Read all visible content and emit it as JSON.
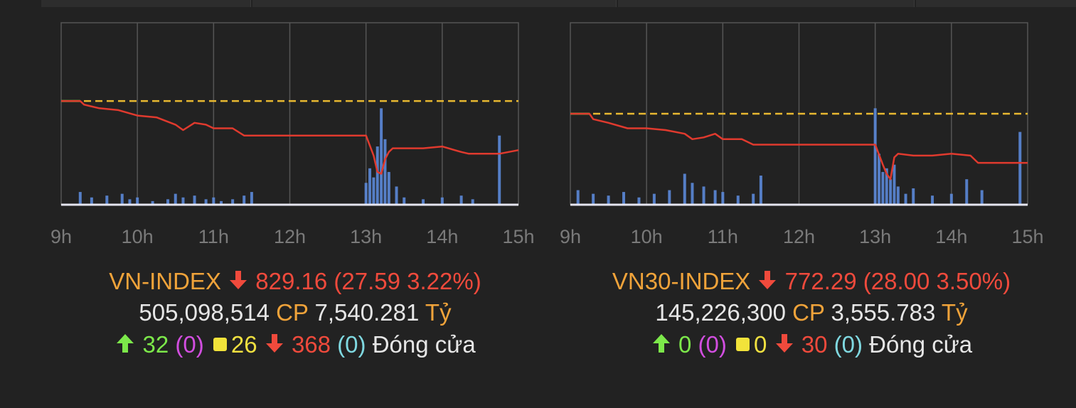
{
  "colors": {
    "background": "#222222",
    "grid": "#555555",
    "reference_line": "#e8b830",
    "index_line": "#e03a2e",
    "opening_segment": "#5cc040",
    "volume_bars": "#5b88d8",
    "name_color": "#f0a33a",
    "down_color": "#f04a3c",
    "up_color": "#7ce84a",
    "unchanged_color": "#f2e33a",
    "ceiling_color": "#d24ee0",
    "floor_color": "#7fd8e0"
  },
  "panels": [
    {
      "name": "VN-INDEX",
      "direction": "down",
      "value": "829.16",
      "change": "(27.59 3.22%)",
      "volume": "505,098,514",
      "cp_label": "CP",
      "turnover": "7,540.281",
      "unit": "Tỷ",
      "advances": "32",
      "advances_ceiling": "(0)",
      "unchanged": "26",
      "declines": "368",
      "declines_floor": "(0)",
      "status": "Đóng cửa"
    },
    {
      "name": "VN30-INDEX",
      "direction": "down",
      "value": "772.29",
      "change": "(28.00 3.50%)",
      "volume": "145,226,300",
      "cp_label": "CP",
      "turnover": "3,555.783",
      "unit": "Tỷ",
      "advances": "0",
      "advances_ceiling": "(0)",
      "unchanged": "0",
      "declines": "30",
      "declines_floor": "(0)",
      "status": "Đóng cửa"
    }
  ],
  "chart_data": [
    {
      "type": "line",
      "title": "VN-INDEX",
      "x_tick_labels": [
        "9h",
        "10h",
        "11h",
        "12h",
        "13h",
        "14h",
        "15h"
      ],
      "xlim": [
        9,
        15
      ],
      "ylim_fraction_of_range": [
        0,
        1
      ],
      "reference_level": 0.57,
      "grid": true,
      "series": [
        {
          "name": "index",
          "x": [
            9.0,
            9.25,
            9.3,
            9.5,
            9.75,
            10.0,
            10.25,
            10.5,
            10.6,
            10.75,
            10.9,
            11.0,
            11.25,
            11.4,
            11.5,
            12.0,
            12.5,
            13.0,
            13.1,
            13.15,
            13.2,
            13.25,
            13.3,
            13.35,
            13.5,
            13.75,
            14.0,
            14.25,
            14.35,
            14.5,
            14.75,
            15.0
          ],
          "y": [
            0.57,
            0.57,
            0.55,
            0.53,
            0.52,
            0.49,
            0.48,
            0.44,
            0.41,
            0.45,
            0.44,
            0.42,
            0.42,
            0.38,
            0.38,
            0.38,
            0.38,
            0.38,
            0.27,
            0.18,
            0.17,
            0.25,
            0.29,
            0.31,
            0.31,
            0.31,
            0.32,
            0.29,
            0.28,
            0.28,
            0.28,
            0.3
          ]
        },
        {
          "name": "volume",
          "x": [
            9.25,
            9.4,
            9.6,
            9.8,
            9.9,
            10.0,
            10.2,
            10.4,
            10.5,
            10.6,
            10.75,
            10.9,
            11.0,
            11.1,
            11.25,
            11.4,
            11.5,
            13.0,
            13.05,
            13.1,
            13.15,
            13.2,
            13.25,
            13.3,
            13.4,
            13.5,
            13.75,
            14.0,
            14.25,
            14.4,
            14.75
          ],
          "y": [
            0.07,
            0.04,
            0.05,
            0.06,
            0.03,
            0.04,
            0.02,
            0.03,
            0.06,
            0.04,
            0.05,
            0.03,
            0.04,
            0.02,
            0.03,
            0.05,
            0.07,
            0.12,
            0.2,
            0.15,
            0.32,
            0.53,
            0.36,
            0.18,
            0.1,
            0.04,
            0.03,
            0.04,
            0.05,
            0.03,
            0.38
          ]
        }
      ]
    },
    {
      "type": "line",
      "title": "VN30-INDEX",
      "x_tick_labels": [
        "9h",
        "10h",
        "11h",
        "12h",
        "13h",
        "14h",
        "15h"
      ],
      "xlim": [
        9,
        15
      ],
      "ylim_fraction_of_range": [
        0,
        1
      ],
      "reference_level": 0.5,
      "grid": true,
      "series": [
        {
          "name": "index",
          "x": [
            9.0,
            9.25,
            9.3,
            9.5,
            9.75,
            10.0,
            10.25,
            10.5,
            10.6,
            10.75,
            10.9,
            11.0,
            11.25,
            11.4,
            11.5,
            12.0,
            12.5,
            13.0,
            13.1,
            13.15,
            13.2,
            13.25,
            13.3,
            13.5,
            13.75,
            14.0,
            14.25,
            14.35,
            14.5,
            15.0
          ],
          "y": [
            0.5,
            0.5,
            0.47,
            0.45,
            0.42,
            0.42,
            0.41,
            0.39,
            0.36,
            0.37,
            0.39,
            0.36,
            0.36,
            0.33,
            0.33,
            0.33,
            0.33,
            0.33,
            0.22,
            0.17,
            0.14,
            0.26,
            0.28,
            0.27,
            0.27,
            0.28,
            0.27,
            0.23,
            0.23,
            0.23
          ]
        },
        {
          "name": "volume",
          "x": [
            9.1,
            9.3,
            9.5,
            9.7,
            9.9,
            10.1,
            10.3,
            10.5,
            10.6,
            10.75,
            10.9,
            11.0,
            11.2,
            11.4,
            11.5,
            13.0,
            13.05,
            13.1,
            13.15,
            13.2,
            13.25,
            13.3,
            13.4,
            13.5,
            13.75,
            14.0,
            14.2,
            14.4,
            14.9
          ],
          "y": [
            0.08,
            0.06,
            0.05,
            0.07,
            0.04,
            0.06,
            0.08,
            0.17,
            0.12,
            0.1,
            0.08,
            0.07,
            0.05,
            0.06,
            0.16,
            0.53,
            0.28,
            0.18,
            0.2,
            0.14,
            0.22,
            0.1,
            0.06,
            0.09,
            0.05,
            0.06,
            0.14,
            0.08,
            0.4
          ]
        }
      ]
    }
  ]
}
